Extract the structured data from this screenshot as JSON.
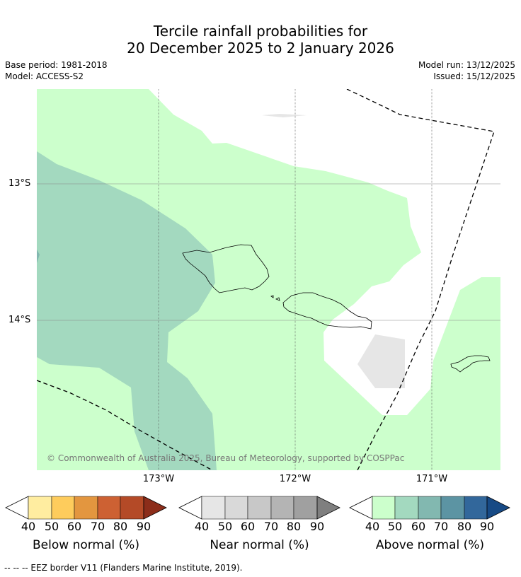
{
  "title_line1": "Tercile rainfall probabilities for",
  "title_line2": "20 December 2025 to 2 January 2026",
  "base_period": "Base period: 1981-2018",
  "model": "Model: ACCESS-S2",
  "model_run": "Model run: 13/12/2025",
  "issued": "Issued: 15/12/2025",
  "lon_labels": [
    "173°W",
    "172°W",
    "171°W"
  ],
  "lat_labels": [
    "13°S",
    "14°S"
  ],
  "copyright": "© Commonwealth of Australia 2025, Bureau of Meteorology, supported by COSPPac",
  "colorbars": [
    {
      "title": "Below normal (%)",
      "ticks": [
        "40",
        "50",
        "60",
        "70",
        "80",
        "90"
      ],
      "colors": [
        "#ffffff",
        "#ffeda0",
        "#fecc5c",
        "#e3963f",
        "#cd6133",
        "#b44a27",
        "#8c2d1a"
      ]
    },
    {
      "title": "Near normal (%)",
      "ticks": [
        "40",
        "50",
        "60",
        "70",
        "80",
        "90"
      ],
      "colors": [
        "#ffffff",
        "#e6e6e6",
        "#d9d9d9",
        "#c8c8c8",
        "#b4b4b4",
        "#a0a0a0",
        "#7f7f7f"
      ]
    },
    {
      "title": "Above normal (%)",
      "ticks": [
        "40",
        "50",
        "60",
        "70",
        "80",
        "90"
      ],
      "colors": [
        "#ffffff",
        "#ccffcc",
        "#a3d9bf",
        "#82b8b0",
        "#5c94a3",
        "#32679b",
        "#174a85"
      ]
    }
  ],
  "footer": "--  --  -- EEZ border V11 (Flanders Marine Institute, 2019)."
}
